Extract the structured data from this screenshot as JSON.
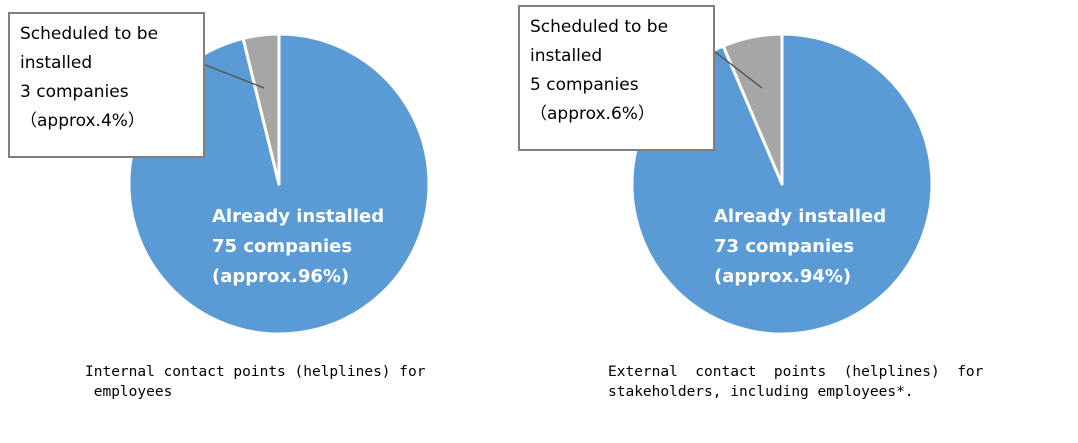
{
  "chart_data": [
    {
      "type": "pie",
      "caption_lines": [
        "Internal contact points (helplines) for",
        " employees"
      ],
      "slices": [
        {
          "name": "Already installed",
          "count_label": "75 companies",
          "pct_label": "(approx.96%)",
          "value": 75,
          "color": "#5b9bd5"
        },
        {
          "name": "Scheduled to be installed",
          "name_lines": [
            "Scheduled to be",
            "installed"
          ],
          "count_label": "3 companies",
          "pct_label": "（approx.4%）",
          "value": 3,
          "color": "#a6a6a6"
        }
      ]
    },
    {
      "type": "pie",
      "caption_lines": [
        "External  contact  points  (helplines)  for",
        "stakeholders, including employees*."
      ],
      "slices": [
        {
          "name": "Already installed",
          "count_label": "73 companies",
          "pct_label": "(approx.94%)",
          "value": 73,
          "color": "#5b9bd5"
        },
        {
          "name": "Scheduled to be installed",
          "name_lines": [
            "Scheduled to be",
            "installed"
          ],
          "count_label": "5 companies",
          "pct_label": "（approx.6%）",
          "value": 5,
          "color": "#a6a6a6"
        }
      ]
    }
  ]
}
